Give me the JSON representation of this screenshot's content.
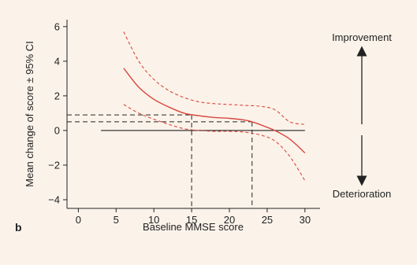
{
  "chart_data": {
    "type": "line",
    "panel_label": "b",
    "xlabel": "Baseline MMSE score",
    "ylabel": "Mean change of score ± 95% CI",
    "xlim": [
      -1.5,
      32
    ],
    "ylim": [
      -4.5,
      6.4
    ],
    "x_ticks": [
      0,
      5,
      10,
      15,
      20,
      25,
      30
    ],
    "y_ticks": [
      -4,
      -2,
      0,
      2,
      4,
      6
    ],
    "grid": false,
    "colors": {
      "curve": "#d9473f",
      "reference": "#222222",
      "background": "#fbf3ea"
    },
    "series": [
      {
        "style": "solid",
        "x": [
          6,
          8,
          10,
          12,
          14,
          16,
          18,
          20,
          22,
          23,
          24,
          26,
          28,
          30
        ],
        "y": [
          3.6,
          2.5,
          1.8,
          1.35,
          1.0,
          0.85,
          0.75,
          0.7,
          0.6,
          0.5,
          0.35,
          0.0,
          -0.5,
          -1.3
        ]
      },
      {
        "style": "dashed",
        "x": [
          6,
          8,
          10,
          12,
          14,
          16,
          18,
          20,
          22,
          24,
          26,
          28,
          30
        ],
        "y": [
          5.7,
          4.0,
          2.95,
          2.3,
          1.9,
          1.65,
          1.55,
          1.5,
          1.45,
          1.4,
          1.2,
          0.5,
          0.35
        ]
      },
      {
        "style": "dashed",
        "x": [
          6,
          8,
          10,
          12,
          14,
          16,
          18,
          20,
          22,
          24,
          26,
          28,
          30
        ],
        "y": [
          1.5,
          1.0,
          0.65,
          0.35,
          0.1,
          0.0,
          -0.05,
          -0.05,
          -0.1,
          -0.25,
          -0.6,
          -1.5,
          -2.9
        ]
      }
    ],
    "reference_line": {
      "x": [
        3,
        30
      ],
      "y": 0
    },
    "guides": [
      {
        "x": 15,
        "y": 0.9
      },
      {
        "x": 23,
        "y": 0.5
      }
    ],
    "annotations": {
      "top": "Improvement",
      "bottom": "Deterioration"
    }
  }
}
